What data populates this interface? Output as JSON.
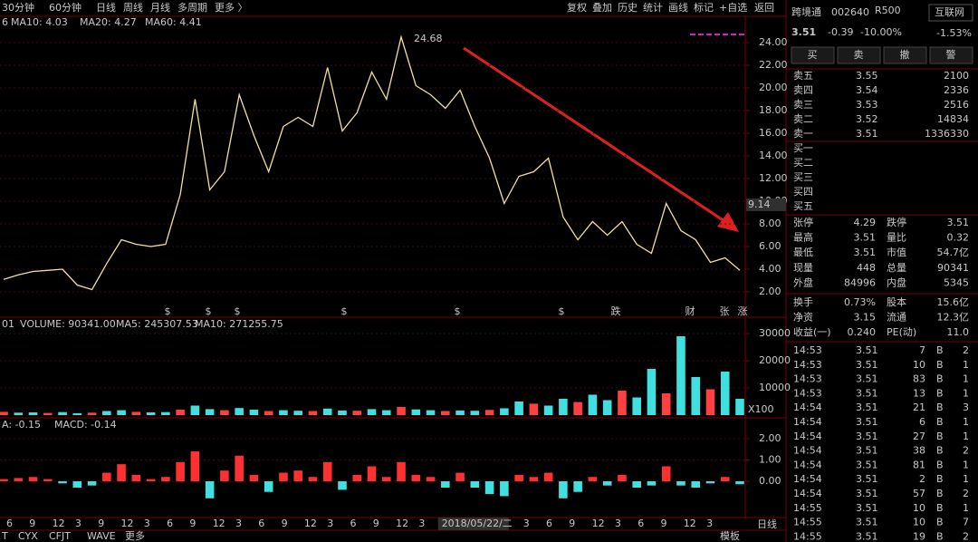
{
  "toolbar": {
    "left": [
      "30分钟",
      "60分钟",
      "日线",
      "周线",
      "月线",
      "多周期",
      "更多 〉"
    ],
    "right": [
      "复权",
      "叠加",
      "历史",
      "统计",
      "画线",
      "标记",
      "+自选",
      "返回"
    ]
  },
  "chart": {
    "price": {
      "header": [
        "6",
        "MA10: 4.03",
        "MA20: 4.27",
        "MA60: 4.41"
      ],
      "peak_label": "24.68",
      "last_label": "9.14",
      "values": [
        3.1,
        3.5,
        3.8,
        3.9,
        4.0,
        2.6,
        2.2,
        4.5,
        6.6,
        6.2,
        6.0,
        6.2,
        10.6,
        19.0,
        11.0,
        12.6,
        19.4,
        15.8,
        12.6,
        16.6,
        17.4,
        16.6,
        21.8,
        16.2,
        17.8,
        21.4,
        19.0,
        24.5,
        20.2,
        19.4,
        18.2,
        19.8,
        16.6,
        13.8,
        9.8,
        12.2,
        12.6,
        13.8,
        8.6,
        6.6,
        8.2,
        7.0,
        8.2,
        6.2,
        5.4,
        9.8,
        7.4,
        6.6,
        4.6,
        5.0,
        3.9
      ],
      "ylim": [
        0.56,
        26.32
      ],
      "yticks": [
        {
          "value": 24,
          "label": "24.00"
        },
        {
          "value": 22,
          "label": "22.00"
        },
        {
          "value": 20,
          "label": "20.00"
        },
        {
          "value": 18,
          "label": "18.00"
        },
        {
          "value": 16,
          "label": "16.00"
        },
        {
          "value": 14,
          "label": "14.00"
        },
        {
          "value": 12,
          "label": "12.00"
        },
        {
          "value": 10,
          "label": "10.00"
        },
        {
          "value": 8,
          "label": "8.00"
        },
        {
          "value": 6,
          "label": "6.00"
        },
        {
          "value": 4,
          "label": "4.00"
        },
        {
          "value": 2,
          "label": "2.00"
        }
      ],
      "markers": [
        "$",
        "$",
        "$",
        "$",
        "$",
        "$",
        "跌",
        "财",
        "张",
        "涨"
      ]
    },
    "volume": {
      "header": [
        "01",
        "VOLUME: 90341.00",
        "MA5: 245307.53",
        "MA10: 271255.75"
      ],
      "unit_label": "X100",
      "values": [
        1200,
        900,
        1000,
        800,
        1100,
        700,
        900,
        1500,
        1800,
        1200,
        1000,
        1100,
        2000,
        3500,
        2200,
        1800,
        2600,
        2000,
        1500,
        1800,
        1600,
        1500,
        2400,
        1700,
        1600,
        2200,
        1800,
        3000,
        2100,
        1800,
        1500,
        1700,
        1600,
        1900,
        2500,
        5000,
        4200,
        3500,
        6000,
        4800,
        7500,
        5500,
        9000,
        6500,
        17000,
        8000,
        29000,
        14000,
        9500,
        16000,
        6000
      ],
      "ylim": [
        0,
        32000
      ],
      "yticks": [
        30000,
        20000,
        10000
      ]
    },
    "macd": {
      "header": [
        "A: -0.15",
        "MACD: -0.14"
      ],
      "values": [
        0.1,
        0.15,
        0.2,
        0.1,
        -0.1,
        -0.3,
        -0.2,
        0.4,
        0.8,
        0.3,
        0.1,
        0.2,
        0.9,
        1.4,
        -0.8,
        0.5,
        1.2,
        0.3,
        -0.5,
        0.4,
        0.5,
        0.2,
        0.9,
        -0.4,
        0.3,
        0.7,
        0.2,
        0.9,
        0.3,
        0.2,
        -0.3,
        0.4,
        -0.3,
        -0.6,
        -0.7,
        0.3,
        0.2,
        0.4,
        -0.8,
        -0.5,
        0.2,
        -0.2,
        0.3,
        -0.3,
        -0.2,
        0.7,
        -0.2,
        -0.3,
        -0.1,
        0.2,
        -0.14
      ],
      "ylim": [
        -1.66,
        2.38
      ],
      "yticks": [
        {
          "value": 2,
          "label": "2.00"
        },
        {
          "value": 1,
          "label": "1.00"
        },
        {
          "value": 0,
          "label": "0.00"
        }
      ]
    },
    "x_labels": [
      "6",
      "9",
      "12",
      "3",
      "9",
      "12",
      "3",
      "6",
      "9",
      "12",
      "3",
      "6",
      "9",
      "12",
      "3",
      "6",
      "9",
      "12",
      "3",
      "2018/05/22/二",
      "3",
      "6",
      "9",
      "12",
      "3",
      "6",
      "9",
      "12",
      "3"
    ],
    "period_label": "日线"
  },
  "bottom_tabs": [
    "T",
    "CYX",
    "CFJT",
    "WAVE",
    "更多"
  ],
  "template": "模板",
  "quote": {
    "name": "跨境通",
    "code": "002640",
    "tag": "R500",
    "sector": "互联网",
    "price": "3.51",
    "change": "-0.39",
    "pct": "-10.00%",
    "sector_pct": "-1.53%"
  },
  "buttons": [
    "买",
    "卖",
    "撤",
    "警"
  ],
  "order_book": {
    "asks": [
      [
        "卖五",
        "3.55",
        "2100"
      ],
      [
        "卖四",
        "3.54",
        "2336"
      ],
      [
        "卖三",
        "3.53",
        "2516"
      ],
      [
        "卖二",
        "3.52",
        "14834"
      ],
      [
        "卖一",
        "3.51",
        "1336330"
      ]
    ],
    "bids": [
      "买一",
      "买二",
      "买三",
      "买四",
      "买五"
    ]
  },
  "stats": [
    [
      "张停",
      "4.29",
      "跌停",
      "3.51"
    ],
    [
      "最高",
      "3.51",
      "量比",
      "0.32"
    ],
    [
      "最低",
      "3.51",
      "市值",
      "54.7亿"
    ],
    [
      "现量",
      "448",
      "总量",
      "90341"
    ],
    [
      "外盘",
      "84996",
      "内盘",
      "5345"
    ],
    [
      "换手",
      "0.73%",
      "股本",
      "15.6亿"
    ],
    [
      "净资",
      "3.15",
      "流通",
      "12.3亿"
    ],
    [
      "收益(一)",
      "0.240",
      "PE(动)",
      "11.0"
    ]
  ],
  "trades": [
    [
      "14:53",
      "3.51",
      "7",
      "B",
      "2"
    ],
    [
      "14:53",
      "3.51",
      "10",
      "B",
      "1"
    ],
    [
      "14:53",
      "3.51",
      "83",
      "B",
      "1"
    ],
    [
      "14:53",
      "3.51",
      "13",
      "B",
      "1"
    ],
    [
      "14:54",
      "3.51",
      "21",
      "B",
      "3"
    ],
    [
      "14:54",
      "3.51",
      "6",
      "B",
      "1"
    ],
    [
      "14:54",
      "3.51",
      "27",
      "B",
      "1"
    ],
    [
      "14:54",
      "3.51",
      "38",
      "B",
      "2"
    ],
    [
      "14:54",
      "3.51",
      "81",
      "B",
      "1"
    ],
    [
      "14:54",
      "3.51",
      "2",
      "B",
      "1"
    ],
    [
      "14:54",
      "3.51",
      "57",
      "B",
      "2"
    ],
    [
      "14:55",
      "3.51",
      "10",
      "B",
      "1"
    ],
    [
      "14:55",
      "3.51",
      "10",
      "B",
      "7"
    ],
    [
      "14:55",
      "3.51",
      "19",
      "B",
      "2"
    ]
  ]
}
